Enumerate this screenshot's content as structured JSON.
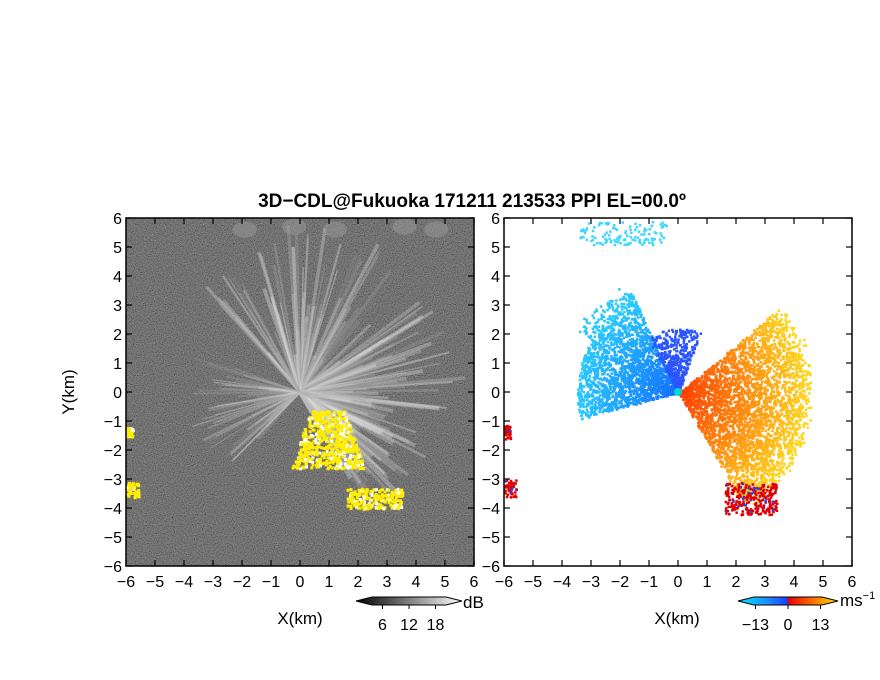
{
  "title": "3D−CDL@Fukuoka 171211 213533 PPI EL=00.0º",
  "chart_data": [
    {
      "type": "heatmap",
      "panel": "left",
      "quantity": "Reflectivity / SNR (grayscale) with yellow marks",
      "xlabel": "X(km)",
      "ylabel": "Y(km)",
      "xlim": [
        -6,
        6
      ],
      "ylim": [
        -6,
        6
      ],
      "x_ticks": [
        -6,
        -5,
        -4,
        -3,
        -2,
        -1,
        0,
        1,
        2,
        3,
        4,
        5,
        6
      ],
      "y_ticks": [
        -6,
        -5,
        -4,
        -3,
        -2,
        -1,
        0,
        1,
        2,
        3,
        4,
        5,
        6
      ],
      "x_tick_labels": [
        "−6",
        "−5",
        "−4",
        "−3",
        "−2",
        "−1",
        "0",
        "1",
        "2",
        "3",
        "4",
        "5",
        "6"
      ],
      "y_tick_labels": [
        "6",
        "5",
        "4",
        "3",
        "2",
        "1",
        "0",
        "−1",
        "−2",
        "−3",
        "−4",
        "−5",
        "−6"
      ],
      "colorbar": {
        "unit": "dB",
        "tick_labels": [
          "6",
          "12",
          "18"
        ],
        "ticks": [
          6,
          12,
          18
        ],
        "range": [
          0,
          24
        ]
      },
      "features": [
        {
          "kind": "beams",
          "sector_deg": [
            -10,
            135
          ],
          "max_range_km": 5.8
        },
        {
          "kind": "yellow_patch",
          "region": [
            [
              -0.3,
              -0.6
            ],
            [
              2.2,
              -0.6
            ],
            [
              1.5,
              -2.6
            ],
            [
              0.3,
              -2.5
            ]
          ]
        },
        {
          "kind": "yellow_patch",
          "region": [
            [
              1.6,
              -3.3
            ],
            [
              3.5,
              -3.3
            ],
            [
              3.5,
              -4.0
            ],
            [
              1.6,
              -4.0
            ]
          ]
        },
        {
          "kind": "yellow_patch",
          "region": [
            [
              -6.0,
              -1.2
            ],
            [
              -5.8,
              -1.2
            ],
            [
              -5.8,
              -1.5
            ],
            [
              -6.0,
              -1.5
            ]
          ]
        },
        {
          "kind": "yellow_patch",
          "region": [
            [
              -6.0,
              -3.1
            ],
            [
              -5.6,
              -3.1
            ],
            [
              -5.6,
              -3.6
            ],
            [
              -6.0,
              -3.6
            ]
          ]
        }
      ]
    },
    {
      "type": "heatmap",
      "panel": "right",
      "quantity": "Doppler velocity",
      "xlabel": "X(km)",
      "ylabel": "",
      "xlim": [
        -6,
        6
      ],
      "ylim": [
        -6,
        6
      ],
      "x_ticks": [
        -6,
        -5,
        -4,
        -3,
        -2,
        -1,
        0,
        1,
        2,
        3,
        4,
        5,
        6
      ],
      "y_ticks": [
        -6,
        -5,
        -4,
        -3,
        -2,
        -1,
        0,
        1,
        2,
        3,
        4,
        5,
        6
      ],
      "x_tick_labels": [
        "−6",
        "−5",
        "−4",
        "−3",
        "−2",
        "−1",
        "0",
        "1",
        "2",
        "3",
        "4",
        "5",
        "6"
      ],
      "y_tick_labels": [
        "6",
        "5",
        "4",
        "3",
        "2",
        "1",
        "0",
        "−1",
        "−2",
        "−3",
        "−4",
        "−5",
        "−6"
      ],
      "colorbar": {
        "unit": "ms",
        "unit_exponent": "−1",
        "tick_labels": [
          "−13",
          "0",
          "13"
        ],
        "ticks": [
          -13,
          0,
          13
        ],
        "range": [
          -20,
          20
        ]
      },
      "features": [
        {
          "kind": "approaching_sector",
          "color": "#1e90ff",
          "sector_deg": [
            120,
            190
          ],
          "max_range_km": 4.0
        },
        {
          "kind": "receding_sector",
          "color": "#ff6a00",
          "sector_deg": [
            -60,
            40
          ],
          "max_range_km": 4.5
        },
        {
          "kind": "red_patch",
          "region": [
            [
              1.6,
              -3.1
            ],
            [
              3.4,
              -3.1
            ],
            [
              3.4,
              -4.2
            ],
            [
              1.6,
              -4.2
            ]
          ]
        },
        {
          "kind": "red_patch",
          "region": [
            [
              -6.0,
              -1.1
            ],
            [
              -5.8,
              -1.1
            ],
            [
              -5.8,
              -1.6
            ],
            [
              -6.0,
              -1.6
            ]
          ]
        },
        {
          "kind": "red_patch",
          "region": [
            [
              -6.0,
              -3.0
            ],
            [
              -5.6,
              -3.0
            ],
            [
              -5.6,
              -3.6
            ],
            [
              -6.0,
              -3.6
            ]
          ]
        }
      ]
    }
  ],
  "colors": {
    "background": "#ffffff",
    "left_panel_bg": "#1a1a1a",
    "yellow": "#ffee00",
    "approach_light": "#00d0ff",
    "approach_dark": "#0050ff",
    "recede_red": "#ff1a00",
    "recede_orange": "#ff8000",
    "recede_yellow": "#ffd000",
    "red": "#e00000"
  }
}
